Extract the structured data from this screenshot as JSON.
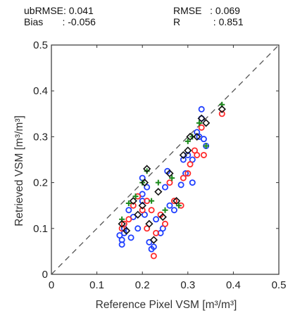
{
  "stats": {
    "ubrmse": "ubRMSE: 0.041",
    "rmse": "RMSE   : 0.069",
    "bias": "Bias       : -0.056",
    "r": "R            : 0.851"
  },
  "chart_data": {
    "type": "scatter",
    "xlabel": "Reference Pixel VSM [m³/m³]",
    "ylabel": "Retrieved VSM [m³/m³]",
    "xlim": [
      0,
      0.5
    ],
    "ylim": [
      0,
      0.5
    ],
    "xticks": [
      "0",
      "0.1",
      "0.2",
      "0.3",
      "0.4",
      "0.5"
    ],
    "yticks": [
      "0",
      "0.1",
      "0.2",
      "0.3",
      "0.4",
      "0.5"
    ],
    "reference_line": {
      "style": "dashed",
      "color": "#555555",
      "from": [
        0,
        0
      ],
      "to": [
        0.5,
        0.5
      ]
    },
    "series": [
      {
        "marker": "circle-open",
        "color": "#1f3fff",
        "points": [
          [
            0.155,
            0.075
          ],
          [
            0.155,
            0.065
          ],
          [
            0.16,
            0.09
          ],
          [
            0.16,
            0.1
          ],
          [
            0.175,
            0.08
          ],
          [
            0.18,
            0.125
          ],
          [
            0.19,
            0.1
          ],
          [
            0.2,
            0.175
          ],
          [
            0.2,
            0.16
          ],
          [
            0.205,
            0.13
          ],
          [
            0.21,
            0.19
          ],
          [
            0.215,
            0.07
          ],
          [
            0.22,
            0.055
          ],
          [
            0.225,
            0.06
          ],
          [
            0.23,
            0.12
          ],
          [
            0.24,
            0.09
          ],
          [
            0.245,
            0.1
          ],
          [
            0.25,
            0.19
          ],
          [
            0.255,
            0.225
          ],
          [
            0.26,
            0.15
          ],
          [
            0.27,
            0.14
          ],
          [
            0.285,
            0.195
          ],
          [
            0.29,
            0.25
          ],
          [
            0.295,
            0.22
          ],
          [
            0.3,
            0.26
          ],
          [
            0.31,
            0.25
          ],
          [
            0.31,
            0.2
          ],
          [
            0.32,
            0.31
          ],
          [
            0.33,
            0.34
          ],
          [
            0.33,
            0.36
          ],
          [
            0.335,
            0.295
          ],
          [
            0.34,
            0.28
          ],
          [
            0.325,
            0.3
          ],
          [
            0.15,
            0.085
          ],
          [
            0.17,
            0.14
          ],
          [
            0.2,
            0.21
          ]
        ]
      },
      {
        "marker": "circle-open",
        "color": "#ff2a2a",
        "points": [
          [
            0.155,
            0.1
          ],
          [
            0.16,
            0.11
          ],
          [
            0.17,
            0.12
          ],
          [
            0.18,
            0.15
          ],
          [
            0.19,
            0.17
          ],
          [
            0.2,
            0.14
          ],
          [
            0.21,
            0.16
          ],
          [
            0.22,
            0.14
          ],
          [
            0.225,
            0.04
          ],
          [
            0.23,
            0.09
          ],
          [
            0.24,
            0.13
          ],
          [
            0.25,
            0.11
          ],
          [
            0.26,
            0.2
          ],
          [
            0.27,
            0.16
          ],
          [
            0.285,
            0.15
          ],
          [
            0.29,
            0.21
          ],
          [
            0.3,
            0.22
          ],
          [
            0.305,
            0.24
          ],
          [
            0.315,
            0.27
          ],
          [
            0.32,
            0.26
          ],
          [
            0.33,
            0.32
          ],
          [
            0.335,
            0.26
          ],
          [
            0.375,
            0.35
          ],
          [
            0.21,
            0.1
          ]
        ]
      },
      {
        "marker": "plus",
        "color": "#1a8a1a",
        "points": [
          [
            0.155,
            0.12
          ],
          [
            0.17,
            0.155
          ],
          [
            0.185,
            0.17
          ],
          [
            0.2,
            0.2
          ],
          [
            0.21,
            0.225
          ],
          [
            0.22,
            0.16
          ],
          [
            0.235,
            0.2
          ],
          [
            0.25,
            0.14
          ],
          [
            0.265,
            0.21
          ],
          [
            0.28,
            0.15
          ],
          [
            0.3,
            0.29
          ],
          [
            0.31,
            0.3
          ],
          [
            0.325,
            0.33
          ],
          [
            0.34,
            0.28
          ],
          [
            0.375,
            0.37
          ]
        ]
      },
      {
        "marker": "diamond-open",
        "color": "#111111",
        "points": [
          [
            0.155,
            0.11
          ],
          [
            0.165,
            0.095
          ],
          [
            0.18,
            0.16
          ],
          [
            0.19,
            0.13
          ],
          [
            0.205,
            0.2
          ],
          [
            0.21,
            0.23
          ],
          [
            0.215,
            0.11
          ],
          [
            0.225,
            0.075
          ],
          [
            0.235,
            0.18
          ],
          [
            0.245,
            0.125
          ],
          [
            0.26,
            0.22
          ],
          [
            0.275,
            0.16
          ],
          [
            0.29,
            0.26
          ],
          [
            0.3,
            0.27
          ],
          [
            0.305,
            0.3
          ],
          [
            0.32,
            0.3
          ],
          [
            0.33,
            0.34
          ],
          [
            0.34,
            0.33
          ],
          [
            0.375,
            0.36
          ],
          [
            0.2,
            0.15
          ]
        ]
      }
    ]
  }
}
